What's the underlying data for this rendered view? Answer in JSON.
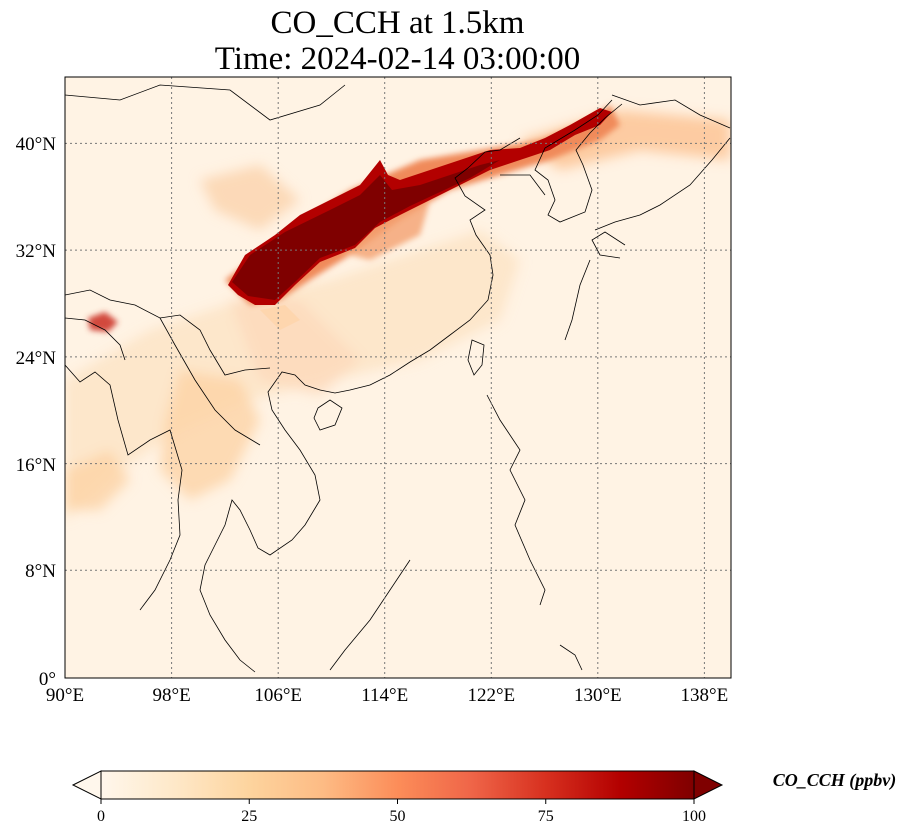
{
  "title": {
    "line1": "CO_CCH at 1.5km",
    "line2": "Time: 2024-02-14 03:00:00"
  },
  "map": {
    "projection": "plate-carree",
    "lon_range": [
      90,
      140
    ],
    "lat_range": [
      0,
      44
    ],
    "lon_ticks": [
      "90°E",
      "98°E",
      "106°E",
      "114°E",
      "122°E",
      "130°E",
      "138°E"
    ],
    "lat_ticks": [
      "0°",
      "8°N",
      "16°N",
      "24°N",
      "32°N",
      "40°N"
    ],
    "gridlines": "dotted",
    "coastlines": true,
    "borders": true
  },
  "colorbar": {
    "label": "CO_CCH (ppbv)",
    "ticks": [
      "0",
      "25",
      "50",
      "75",
      "100"
    ],
    "range": [
      0,
      100
    ],
    "colormap": "OrRd",
    "extend": "both",
    "colors": [
      "#fff7ec",
      "#fee8c8",
      "#fdd49e",
      "#fdbb84",
      "#fc8d59",
      "#ef6548",
      "#d7301f",
      "#b30000",
      "#7f0000"
    ]
  }
}
